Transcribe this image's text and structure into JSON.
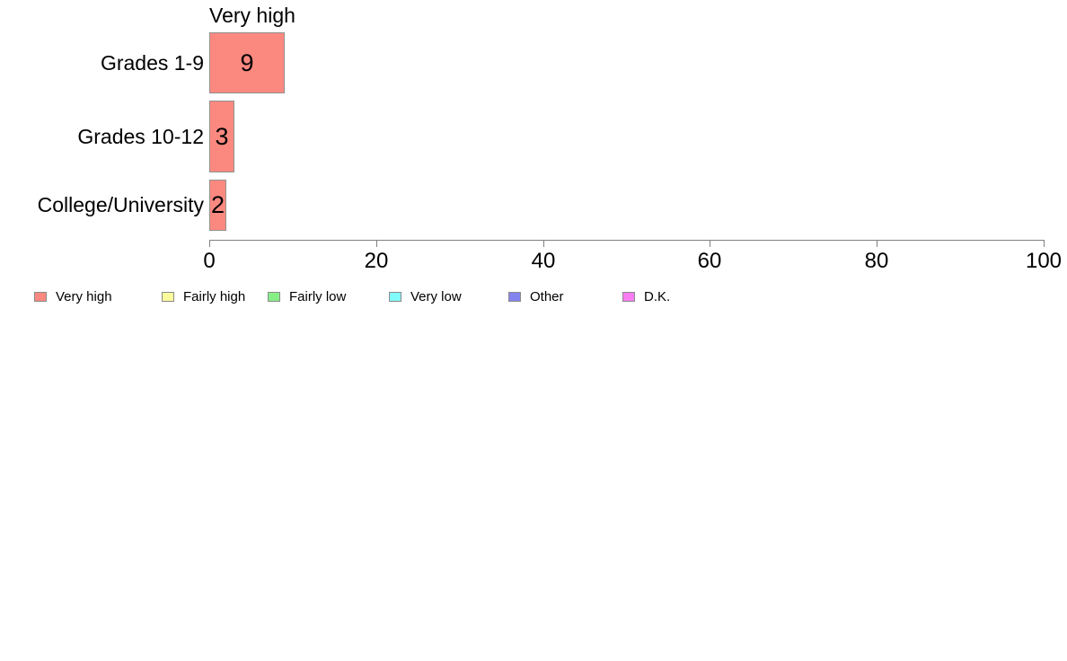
{
  "chart_data": {
    "type": "bar",
    "orientation": "horizontal",
    "title": "Very high",
    "categories": [
      "Grades 1-9",
      "Grades 10-12",
      "College/University"
    ],
    "values": [
      9,
      3,
      2
    ],
    "bar_labels": [
      "9",
      "3",
      "2"
    ],
    "xlabel": "",
    "ylabel": "",
    "xlim": [
      0,
      100
    ],
    "x_ticks": [
      0,
      20,
      40,
      60,
      80,
      100
    ],
    "grid": false,
    "legend_position": "bottom-left",
    "series_color": "#FB8980",
    "bar_border_color": "#909090",
    "axis_color": "#808080",
    "legend": [
      {
        "label": "Very high",
        "color": "#FB8980"
      },
      {
        "label": "Fairly high",
        "color": "#FBFB9E"
      },
      {
        "label": "Fairly low",
        "color": "#86EF86"
      },
      {
        "label": "Very low",
        "color": "#82FAFA"
      },
      {
        "label": "Other",
        "color": "#8384EE"
      },
      {
        "label": "D.K.",
        "color": "#F97DF2"
      }
    ]
  }
}
